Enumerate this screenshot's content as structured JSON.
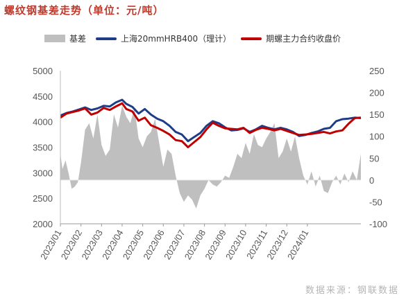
{
  "header": {
    "title": "螺纹钢基差走势（单位：元/吨）"
  },
  "legend": {
    "basis_label": "基差",
    "spot_label": "上海20mmHRB400（理计）",
    "futures_label": "期螺主力合约收盘价"
  },
  "source_text": "数据来源：钢联数据",
  "colors": {
    "basis": "#bfbfbf",
    "spot": "#1f3c88",
    "futures": "#c00000",
    "title": "#c0392b"
  },
  "chart_data": {
    "type": "line",
    "x_labels": [
      "2023/01",
      "2023/02",
      "2023/03",
      "2023/04",
      "2023/05",
      "2023/06",
      "2023/07",
      "2023/08",
      "2023/09",
      "2023/10",
      "2023/11",
      "2023/12",
      "2024/01"
    ],
    "x_range_months": [
      0,
      14.6
    ],
    "y_left": {
      "ylim": [
        2000,
        5000
      ],
      "ticks": [
        2000,
        2500,
        3000,
        3500,
        4000,
        4500,
        5000
      ]
    },
    "y_right": {
      "ylim": [
        -100,
        250
      ],
      "ticks": [
        -100,
        -50,
        0,
        50,
        100,
        150,
        200,
        250
      ]
    },
    "series": [
      {
        "name": "基差",
        "axis": "right",
        "kind": "area",
        "x": [
          0,
          0.1,
          0.25,
          0.4,
          0.55,
          0.7,
          0.85,
          1.0,
          1.2,
          1.4,
          1.6,
          1.8,
          2.0,
          2.2,
          2.4,
          2.6,
          2.8,
          3.0,
          3.2,
          3.4,
          3.6,
          3.8,
          4.0,
          4.2,
          4.4,
          4.6,
          4.8,
          5.0,
          5.2,
          5.4,
          5.6,
          5.8,
          6.0,
          6.2,
          6.4,
          6.6,
          6.8,
          7.0,
          7.2,
          7.4,
          7.6,
          7.8,
          8.0,
          8.2,
          8.4,
          8.6,
          8.8,
          9.0,
          9.2,
          9.4,
          9.6,
          9.8,
          10.0,
          10.2,
          10.4,
          10.6,
          10.8,
          11.0,
          11.2,
          11.4,
          11.6,
          11.8,
          12.0,
          12.2,
          12.4,
          12.6,
          12.8,
          13.0,
          13.2,
          13.4,
          13.6,
          13.8,
          14.0,
          14.2,
          14.4,
          14.6
        ],
        "values": [
          60,
          25,
          45,
          15,
          -20,
          -15,
          -5,
          40,
          115,
          130,
          95,
          150,
          80,
          55,
          70,
          150,
          120,
          170,
          145,
          130,
          165,
          95,
          75,
          100,
          110,
          140,
          85,
          30,
          70,
          60,
          10,
          -30,
          -50,
          -35,
          -45,
          -65,
          -35,
          -20,
          0,
          -10,
          -15,
          -5,
          10,
          5,
          30,
          60,
          50,
          85,
          60,
          105,
          80,
          75,
          95,
          110,
          130,
          50,
          65,
          95,
          65,
          100,
          50,
          10,
          -10,
          20,
          -15,
          10,
          -25,
          -30,
          -5,
          10,
          -10,
          15,
          -5,
          20,
          0,
          60
        ]
      },
      {
        "name": "上海20mmHRB400（理计）",
        "axis": "left",
        "kind": "line",
        "x": [
          0,
          0.3,
          0.6,
          0.9,
          1.2,
          1.5,
          1.8,
          2.1,
          2.4,
          2.7,
          3.0,
          3.2,
          3.5,
          3.8,
          4.1,
          4.4,
          4.7,
          5.0,
          5.3,
          5.6,
          5.9,
          6.2,
          6.5,
          6.8,
          7.1,
          7.4,
          7.7,
          8.0,
          8.3,
          8.6,
          8.9,
          9.2,
          9.5,
          9.8,
          10.1,
          10.4,
          10.7,
          11.0,
          11.3,
          11.6,
          11.9,
          12.2,
          12.5,
          12.8,
          13.1,
          13.4,
          13.7,
          14.0,
          14.3,
          14.6
        ],
        "values": [
          4120,
          4170,
          4200,
          4240,
          4280,
          4230,
          4260,
          4310,
          4300,
          4380,
          4430,
          4350,
          4290,
          4160,
          4250,
          4140,
          4060,
          4010,
          3920,
          3800,
          3750,
          3620,
          3700,
          3780,
          3920,
          4010,
          3970,
          3890,
          3830,
          3840,
          3870,
          3800,
          3850,
          3920,
          3880,
          3850,
          3880,
          3850,
          3800,
          3720,
          3740,
          3780,
          3810,
          3860,
          3880,
          4010,
          4050,
          4060,
          4080,
          4070
        ]
      },
      {
        "name": "期螺主力合约收盘价",
        "axis": "left",
        "kind": "line",
        "x": [
          0,
          0.3,
          0.6,
          0.9,
          1.2,
          1.5,
          1.8,
          2.1,
          2.4,
          2.7,
          3.0,
          3.2,
          3.5,
          3.8,
          4.1,
          4.4,
          4.7,
          5.0,
          5.3,
          5.6,
          5.9,
          6.2,
          6.5,
          6.8,
          7.1,
          7.4,
          7.7,
          8.0,
          8.3,
          8.6,
          8.9,
          9.2,
          9.5,
          9.8,
          10.1,
          10.4,
          10.7,
          11.0,
          11.3,
          11.6,
          11.9,
          12.2,
          12.5,
          12.8,
          13.1,
          13.4,
          13.7,
          14.0,
          14.3,
          14.6
        ],
        "values": [
          4080,
          4160,
          4190,
          4220,
          4260,
          4140,
          4180,
          4270,
          4230,
          4300,
          4360,
          4250,
          4200,
          4020,
          4080,
          3930,
          3880,
          3820,
          3750,
          3640,
          3620,
          3500,
          3600,
          3700,
          3850,
          3980,
          3920,
          3870,
          3860,
          3850,
          3880,
          3780,
          3840,
          3880,
          3860,
          3830,
          3860,
          3820,
          3780,
          3740,
          3750,
          3760,
          3780,
          3800,
          3770,
          3810,
          3830,
          3960,
          4070,
          4080
        ]
      }
    ],
    "title": "",
    "xlabel": "",
    "ylabel": "",
    "grid": false,
    "legend_position": "top"
  }
}
